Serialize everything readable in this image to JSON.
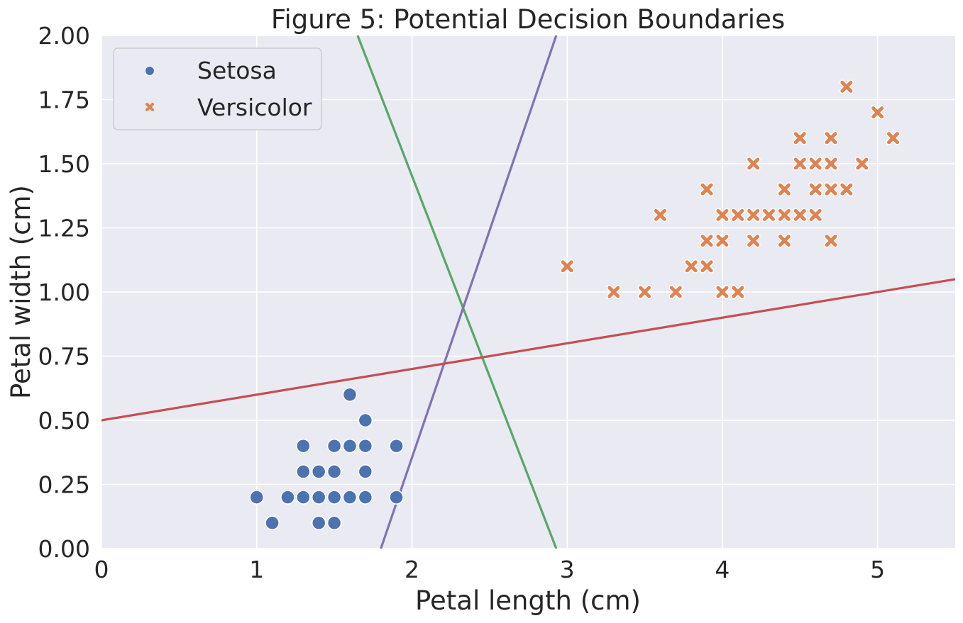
{
  "chart_data": {
    "type": "scatter",
    "title": "Figure 5: Potential Decision Boundaries",
    "xlabel": "Petal length (cm)",
    "ylabel": "Petal width (cm)",
    "xlim": [
      0,
      5.5
    ],
    "ylim": [
      0,
      2.0
    ],
    "x_ticks": [
      0,
      1,
      2,
      3,
      4,
      5
    ],
    "x_tick_labels": [
      "0",
      "1",
      "2",
      "3",
      "4",
      "5"
    ],
    "y_ticks": [
      0,
      0.25,
      0.5,
      0.75,
      1.0,
      1.25,
      1.5,
      1.75,
      2.0
    ],
    "y_tick_labels": [
      "0.00",
      "0.25",
      "0.50",
      "0.75",
      "1.00",
      "1.25",
      "1.50",
      "1.75",
      "2.00"
    ],
    "grid": true,
    "legend_position": "top-left",
    "background_color": "#eaeaf2",
    "series": [
      {
        "name": "Setosa",
        "marker": "circle",
        "color": "#4c72b0",
        "points": [
          [
            1.0,
            0.2
          ],
          [
            1.1,
            0.1
          ],
          [
            1.2,
            0.2
          ],
          [
            1.3,
            0.2
          ],
          [
            1.3,
            0.3
          ],
          [
            1.3,
            0.4
          ],
          [
            1.4,
            0.1
          ],
          [
            1.4,
            0.2
          ],
          [
            1.4,
            0.3
          ],
          [
            1.5,
            0.1
          ],
          [
            1.5,
            0.2
          ],
          [
            1.5,
            0.3
          ],
          [
            1.5,
            0.4
          ],
          [
            1.6,
            0.2
          ],
          [
            1.6,
            0.4
          ],
          [
            1.6,
            0.6
          ],
          [
            1.7,
            0.2
          ],
          [
            1.7,
            0.3
          ],
          [
            1.7,
            0.4
          ],
          [
            1.7,
            0.5
          ],
          [
            1.9,
            0.2
          ],
          [
            1.9,
            0.4
          ]
        ]
      },
      {
        "name": "Versicolor",
        "marker": "x",
        "color": "#dd8452",
        "points": [
          [
            3.0,
            1.1
          ],
          [
            3.3,
            1.0
          ],
          [
            3.5,
            1.0
          ],
          [
            3.6,
            1.3
          ],
          [
            3.7,
            1.0
          ],
          [
            3.8,
            1.1
          ],
          [
            3.9,
            1.1
          ],
          [
            3.9,
            1.2
          ],
          [
            3.9,
            1.4
          ],
          [
            4.0,
            1.0
          ],
          [
            4.0,
            1.2
          ],
          [
            4.0,
            1.3
          ],
          [
            4.1,
            1.0
          ],
          [
            4.1,
            1.3
          ],
          [
            4.2,
            1.2
          ],
          [
            4.2,
            1.3
          ],
          [
            4.2,
            1.5
          ],
          [
            4.3,
            1.3
          ],
          [
            4.4,
            1.2
          ],
          [
            4.4,
            1.3
          ],
          [
            4.4,
            1.4
          ],
          [
            4.5,
            1.3
          ],
          [
            4.5,
            1.5
          ],
          [
            4.5,
            1.6
          ],
          [
            4.6,
            1.3
          ],
          [
            4.6,
            1.4
          ],
          [
            4.6,
            1.5
          ],
          [
            4.7,
            1.2
          ],
          [
            4.7,
            1.4
          ],
          [
            4.7,
            1.5
          ],
          [
            4.7,
            1.6
          ],
          [
            4.8,
            1.4
          ],
          [
            4.8,
            1.8
          ],
          [
            4.9,
            1.5
          ],
          [
            5.0,
            1.7
          ],
          [
            5.1,
            1.6
          ]
        ]
      }
    ],
    "lines": [
      {
        "color": "#55a868",
        "x": [
          1.65,
          2.93
        ],
        "y": [
          2.0,
          0.0
        ]
      },
      {
        "color": "#8172b3",
        "x": [
          1.8,
          2.93
        ],
        "y": [
          0.0,
          2.0
        ]
      },
      {
        "color": "#c44e52",
        "x": [
          0.0,
          5.5
        ],
        "y": [
          0.5,
          1.05
        ]
      }
    ]
  }
}
